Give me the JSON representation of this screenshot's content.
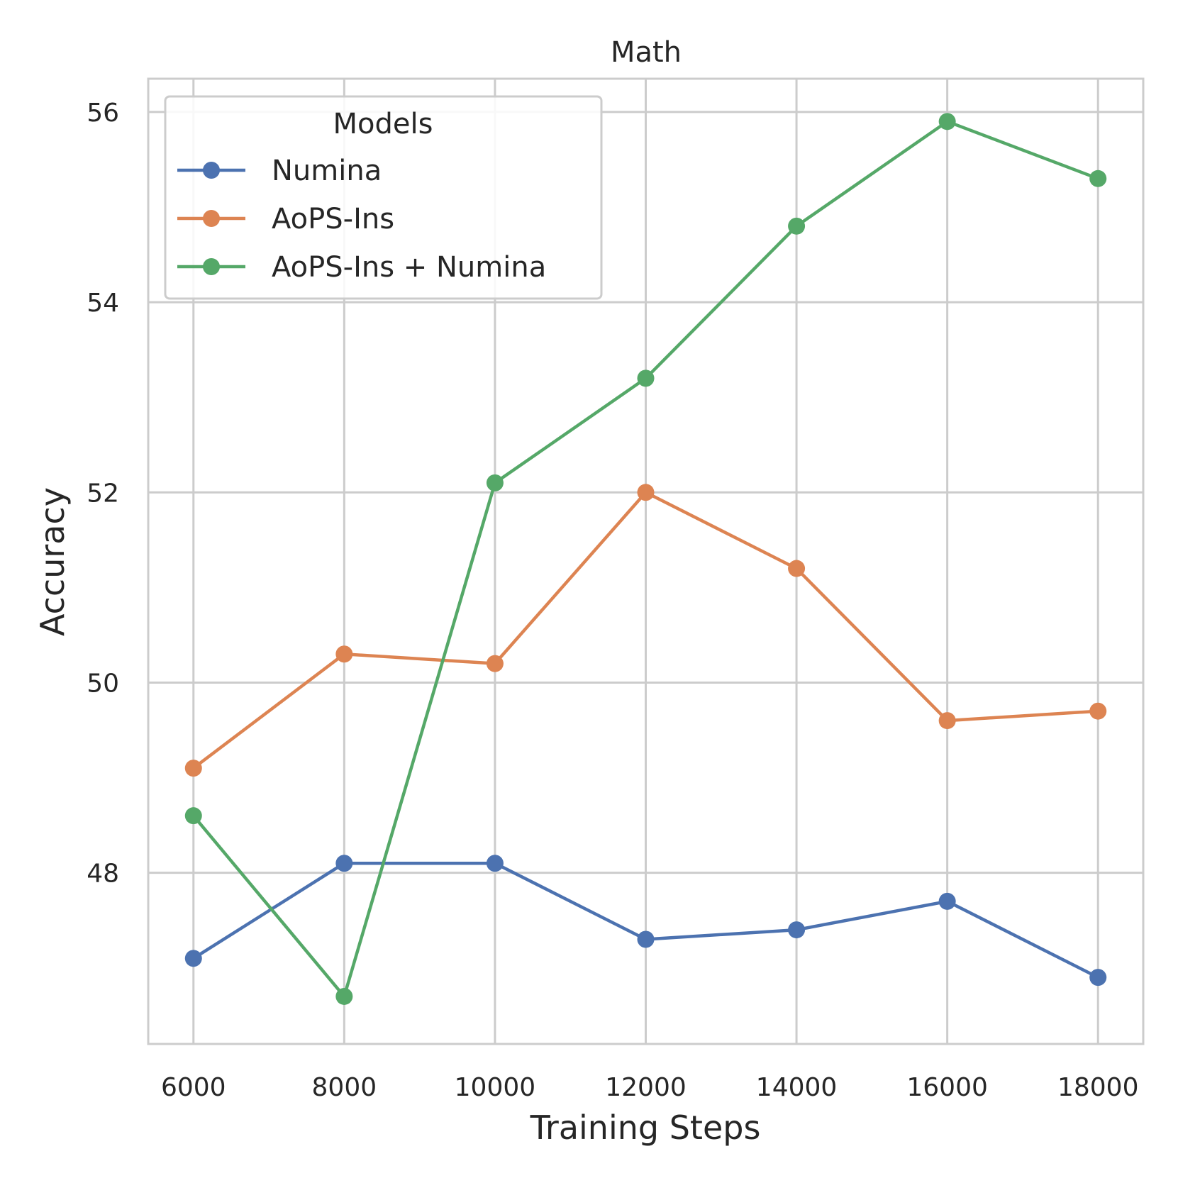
{
  "chart_data": {
    "type": "line",
    "title": "Math",
    "xlabel": "Training Steps",
    "ylabel": "Accuracy",
    "x": [
      6000,
      8000,
      10000,
      12000,
      14000,
      16000,
      18000
    ],
    "xticks": [
      "6000",
      "8000",
      "10000",
      "12000",
      "14000",
      "16000",
      "18000"
    ],
    "yticks": [
      "48",
      "50",
      "52",
      "54",
      "56"
    ],
    "xlim": [
      5400,
      18600
    ],
    "ylim": [
      46.2,
      56.35
    ],
    "grid": true,
    "legend": {
      "title": "Models",
      "placement": "upper-left"
    },
    "series": [
      {
        "name": "Numina",
        "color": "#4c72b0",
        "values": [
          47.1,
          48.1,
          48.1,
          47.3,
          47.4,
          47.7,
          46.9
        ]
      },
      {
        "name": "AoPS-Ins",
        "color": "#dd8452",
        "values": [
          49.1,
          50.3,
          50.2,
          52.0,
          51.2,
          49.6,
          49.7
        ]
      },
      {
        "name": "AoPS-Ins + Numina",
        "color": "#55a868",
        "values": [
          48.6,
          46.7,
          52.1,
          53.2,
          54.8,
          55.9,
          55.3
        ]
      }
    ]
  }
}
